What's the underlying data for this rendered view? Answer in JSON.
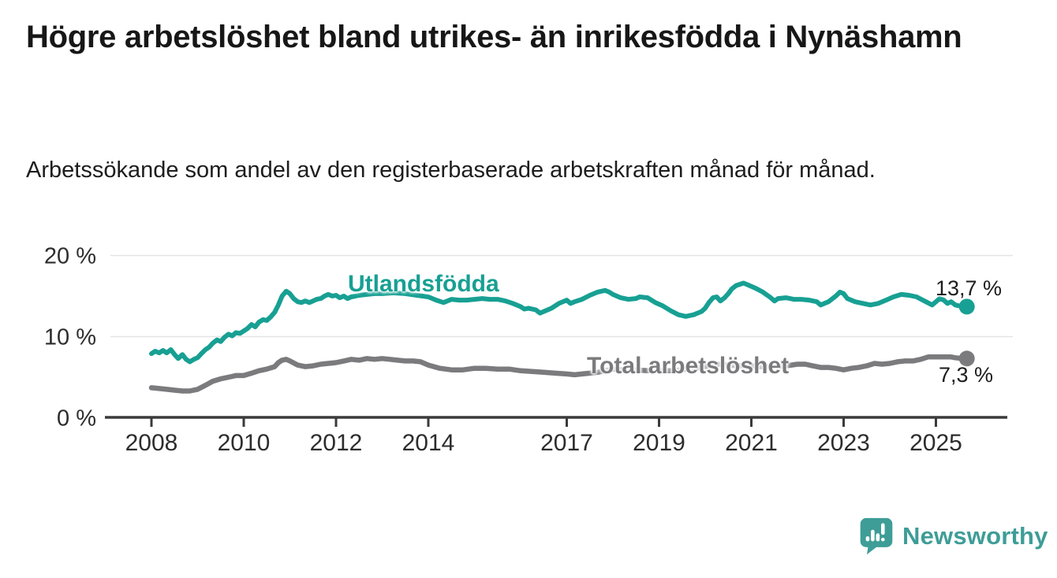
{
  "header": {
    "title": "Högre arbetslöshet bland utrikes- än inrikesfödda i Nynäshamn",
    "subtitle": "Arbetssökande som andel av den registerbaserade arbetskraften månad för månad."
  },
  "footer": {
    "brand": "Newsworthy",
    "brand_color": "#3E9D97",
    "icon": "speech-bubble-bar-chart-exclamation"
  },
  "chart_data": {
    "type": "line",
    "unit": "%",
    "frequency": "monthly",
    "grid": "horizontal-only",
    "ylim": [
      0,
      20
    ],
    "x_range": [
      2008.0,
      2025.67
    ],
    "x_ticks": [
      2008,
      2010,
      2012,
      2014,
      2017,
      2019,
      2021,
      2023,
      2025
    ],
    "y_ticks": [
      {
        "value": 0,
        "label": "0 %"
      },
      {
        "value": 10,
        "label": "10 %"
      },
      {
        "value": 20,
        "label": "20 %"
      }
    ],
    "colors": {
      "axis": "#3a3a3a",
      "gridline": "#e4e4e4",
      "tick_text": "#2d2d2d"
    },
    "series": [
      {
        "name": "Utlandsfödda",
        "label": "Utlandsfödda",
        "color": "#17a093",
        "stroke_width": 6,
        "end_label": "13,7 %",
        "end_value": 13.7,
        "points": [
          [
            2008.0,
            7.9
          ],
          [
            2008.08,
            8.2
          ],
          [
            2008.17,
            8.0
          ],
          [
            2008.25,
            8.3
          ],
          [
            2008.33,
            8.0
          ],
          [
            2008.42,
            8.4
          ],
          [
            2008.5,
            7.8
          ],
          [
            2008.58,
            7.3
          ],
          [
            2008.67,
            7.8
          ],
          [
            2008.75,
            7.2
          ],
          [
            2008.83,
            6.9
          ],
          [
            2008.92,
            7.2
          ],
          [
            2009.0,
            7.4
          ],
          [
            2009.08,
            7.9
          ],
          [
            2009.17,
            8.4
          ],
          [
            2009.25,
            8.7
          ],
          [
            2009.33,
            9.2
          ],
          [
            2009.42,
            9.6
          ],
          [
            2009.5,
            9.4
          ],
          [
            2009.58,
            9.9
          ],
          [
            2009.67,
            10.3
          ],
          [
            2009.75,
            10.1
          ],
          [
            2009.83,
            10.5
          ],
          [
            2009.92,
            10.4
          ],
          [
            2010.0,
            10.7
          ],
          [
            2010.08,
            11.0
          ],
          [
            2010.17,
            11.5
          ],
          [
            2010.25,
            11.2
          ],
          [
            2010.33,
            11.8
          ],
          [
            2010.42,
            12.1
          ],
          [
            2010.5,
            12.0
          ],
          [
            2010.58,
            12.4
          ],
          [
            2010.67,
            13.0
          ],
          [
            2010.75,
            13.9
          ],
          [
            2010.83,
            15.0
          ],
          [
            2010.92,
            15.6
          ],
          [
            2011.0,
            15.3
          ],
          [
            2011.08,
            14.7
          ],
          [
            2011.17,
            14.3
          ],
          [
            2011.25,
            14.2
          ],
          [
            2011.33,
            14.4
          ],
          [
            2011.42,
            14.2
          ],
          [
            2011.5,
            14.4
          ],
          [
            2011.58,
            14.6
          ],
          [
            2011.67,
            14.7
          ],
          [
            2011.75,
            15.0
          ],
          [
            2011.83,
            15.2
          ],
          [
            2011.92,
            15.0
          ],
          [
            2012.0,
            15.1
          ],
          [
            2012.08,
            14.8
          ],
          [
            2012.17,
            15.0
          ],
          [
            2012.25,
            14.7
          ],
          [
            2012.33,
            14.9
          ],
          [
            2012.42,
            15.0
          ],
          [
            2012.5,
            15.1
          ],
          [
            2012.67,
            15.2
          ],
          [
            2012.83,
            15.3
          ],
          [
            2013.0,
            15.3
          ],
          [
            2013.25,
            15.4
          ],
          [
            2013.5,
            15.3
          ],
          [
            2013.75,
            15.1
          ],
          [
            2014.0,
            14.9
          ],
          [
            2014.17,
            14.5
          ],
          [
            2014.33,
            14.2
          ],
          [
            2014.5,
            14.6
          ],
          [
            2014.67,
            14.5
          ],
          [
            2014.83,
            14.5
          ],
          [
            2015.0,
            14.6
          ],
          [
            2015.17,
            14.7
          ],
          [
            2015.33,
            14.6
          ],
          [
            2015.5,
            14.6
          ],
          [
            2015.67,
            14.4
          ],
          [
            2015.83,
            14.1
          ],
          [
            2016.0,
            13.7
          ],
          [
            2016.08,
            13.4
          ],
          [
            2016.17,
            13.5
          ],
          [
            2016.33,
            13.3
          ],
          [
            2016.42,
            12.9
          ],
          [
            2016.5,
            13.1
          ],
          [
            2016.67,
            13.5
          ],
          [
            2016.83,
            14.1
          ],
          [
            2017.0,
            14.5
          ],
          [
            2017.08,
            14.1
          ],
          [
            2017.17,
            14.3
          ],
          [
            2017.33,
            14.6
          ],
          [
            2017.5,
            15.1
          ],
          [
            2017.67,
            15.5
          ],
          [
            2017.83,
            15.7
          ],
          [
            2017.92,
            15.5
          ],
          [
            2018.0,
            15.2
          ],
          [
            2018.17,
            14.8
          ],
          [
            2018.33,
            14.6
          ],
          [
            2018.5,
            14.7
          ],
          [
            2018.58,
            14.9
          ],
          [
            2018.75,
            14.8
          ],
          [
            2018.92,
            14.2
          ],
          [
            2019.08,
            13.8
          ],
          [
            2019.25,
            13.2
          ],
          [
            2019.42,
            12.7
          ],
          [
            2019.58,
            12.5
          ],
          [
            2019.75,
            12.7
          ],
          [
            2019.92,
            13.1
          ],
          [
            2020.0,
            13.5
          ],
          [
            2020.08,
            14.2
          ],
          [
            2020.17,
            14.8
          ],
          [
            2020.25,
            14.9
          ],
          [
            2020.33,
            14.4
          ],
          [
            2020.42,
            14.8
          ],
          [
            2020.5,
            15.3
          ],
          [
            2020.58,
            15.9
          ],
          [
            2020.67,
            16.3
          ],
          [
            2020.83,
            16.6
          ],
          [
            2020.92,
            16.4
          ],
          [
            2021.08,
            16.0
          ],
          [
            2021.25,
            15.5
          ],
          [
            2021.42,
            14.8
          ],
          [
            2021.5,
            14.4
          ],
          [
            2021.58,
            14.7
          ],
          [
            2021.75,
            14.8
          ],
          [
            2021.92,
            14.6
          ],
          [
            2022.08,
            14.6
          ],
          [
            2022.25,
            14.5
          ],
          [
            2022.42,
            14.3
          ],
          [
            2022.5,
            13.9
          ],
          [
            2022.67,
            14.3
          ],
          [
            2022.83,
            15.0
          ],
          [
            2022.92,
            15.5
          ],
          [
            2023.0,
            15.3
          ],
          [
            2023.08,
            14.7
          ],
          [
            2023.25,
            14.3
          ],
          [
            2023.42,
            14.1
          ],
          [
            2023.58,
            13.9
          ],
          [
            2023.75,
            14.1
          ],
          [
            2023.92,
            14.5
          ],
          [
            2024.08,
            14.9
          ],
          [
            2024.25,
            15.2
          ],
          [
            2024.42,
            15.1
          ],
          [
            2024.58,
            14.9
          ],
          [
            2024.75,
            14.4
          ],
          [
            2024.92,
            13.9
          ],
          [
            2025.0,
            14.3
          ],
          [
            2025.08,
            14.7
          ],
          [
            2025.17,
            14.5
          ],
          [
            2025.25,
            14.1
          ],
          [
            2025.33,
            14.3
          ],
          [
            2025.42,
            13.9
          ],
          [
            2025.58,
            13.7
          ],
          [
            2025.67,
            13.7
          ]
        ]
      },
      {
        "name": "Total arbetslöshet",
        "label": "Total arbetslöshet",
        "color": "#7b7b7e",
        "stroke_width": 6.5,
        "end_label": "7,3 %",
        "end_value": 7.3,
        "points": [
          [
            2008.0,
            3.7
          ],
          [
            2008.17,
            3.6
          ],
          [
            2008.33,
            3.5
          ],
          [
            2008.5,
            3.4
          ],
          [
            2008.67,
            3.3
          ],
          [
            2008.83,
            3.3
          ],
          [
            2009.0,
            3.5
          ],
          [
            2009.17,
            4.0
          ],
          [
            2009.33,
            4.5
          ],
          [
            2009.5,
            4.8
          ],
          [
            2009.67,
            5.0
          ],
          [
            2009.83,
            5.2
          ],
          [
            2010.0,
            5.2
          ],
          [
            2010.17,
            5.5
          ],
          [
            2010.33,
            5.8
          ],
          [
            2010.5,
            6.0
          ],
          [
            2010.67,
            6.3
          ],
          [
            2010.75,
            6.8
          ],
          [
            2010.83,
            7.1
          ],
          [
            2010.92,
            7.2
          ],
          [
            2011.0,
            7.0
          ],
          [
            2011.17,
            6.5
          ],
          [
            2011.33,
            6.3
          ],
          [
            2011.5,
            6.4
          ],
          [
            2011.67,
            6.6
          ],
          [
            2011.83,
            6.7
          ],
          [
            2012.0,
            6.8
          ],
          [
            2012.17,
            7.0
          ],
          [
            2012.33,
            7.2
          ],
          [
            2012.5,
            7.1
          ],
          [
            2012.67,
            7.3
          ],
          [
            2012.83,
            7.2
          ],
          [
            2013.0,
            7.3
          ],
          [
            2013.17,
            7.2
          ],
          [
            2013.33,
            7.1
          ],
          [
            2013.5,
            7.0
          ],
          [
            2013.67,
            7.0
          ],
          [
            2013.83,
            6.9
          ],
          [
            2014.0,
            6.5
          ],
          [
            2014.25,
            6.1
          ],
          [
            2014.5,
            5.9
          ],
          [
            2014.75,
            5.9
          ],
          [
            2015.0,
            6.1
          ],
          [
            2015.25,
            6.1
          ],
          [
            2015.5,
            6.0
          ],
          [
            2015.75,
            6.0
          ],
          [
            2016.0,
            5.8
          ],
          [
            2016.25,
            5.7
          ],
          [
            2016.5,
            5.6
          ],
          [
            2016.75,
            5.5
          ],
          [
            2017.0,
            5.4
          ],
          [
            2017.17,
            5.3
          ],
          [
            2017.33,
            5.4
          ],
          [
            2017.5,
            5.5
          ],
          [
            2017.67,
            5.6
          ],
          [
            2017.83,
            5.8
          ],
          [
            2018.0,
            6.0
          ],
          [
            2018.25,
            5.9
          ],
          [
            2018.5,
            5.9
          ],
          [
            2018.75,
            5.8
          ],
          [
            2019.0,
            5.8
          ],
          [
            2019.25,
            5.8
          ],
          [
            2019.5,
            5.9
          ],
          [
            2019.75,
            6.1
          ],
          [
            2020.0,
            6.3
          ],
          [
            2020.25,
            6.6
          ],
          [
            2020.5,
            6.5
          ],
          [
            2020.75,
            6.4
          ],
          [
            2021.0,
            6.4
          ],
          [
            2021.25,
            6.3
          ],
          [
            2021.5,
            6.3
          ],
          [
            2021.75,
            6.4
          ],
          [
            2022.0,
            6.6
          ],
          [
            2022.17,
            6.6
          ],
          [
            2022.33,
            6.4
          ],
          [
            2022.5,
            6.2
          ],
          [
            2022.67,
            6.2
          ],
          [
            2022.83,
            6.1
          ],
          [
            2023.0,
            5.9
          ],
          [
            2023.17,
            6.1
          ],
          [
            2023.33,
            6.2
          ],
          [
            2023.5,
            6.4
          ],
          [
            2023.67,
            6.7
          ],
          [
            2023.83,
            6.6
          ],
          [
            2024.0,
            6.7
          ],
          [
            2024.17,
            6.9
          ],
          [
            2024.33,
            7.0
          ],
          [
            2024.5,
            7.0
          ],
          [
            2024.67,
            7.2
          ],
          [
            2024.83,
            7.5
          ],
          [
            2025.0,
            7.5
          ],
          [
            2025.17,
            7.5
          ],
          [
            2025.33,
            7.5
          ],
          [
            2025.42,
            7.4
          ],
          [
            2025.58,
            7.3
          ],
          [
            2025.67,
            7.3
          ]
        ]
      }
    ]
  }
}
